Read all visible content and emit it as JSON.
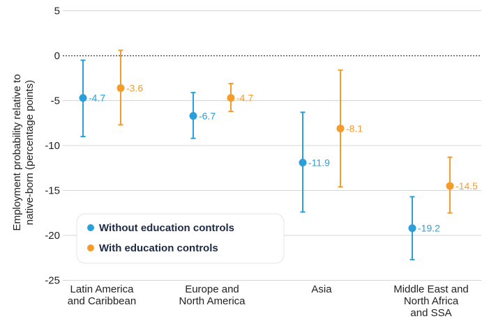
{
  "chart_data": {
    "type": "scatter",
    "ylabel_lines": [
      "Employment probability relative to",
      "native-born (percentage points)"
    ],
    "ylim": [
      -25,
      5
    ],
    "yticks": [
      5,
      0,
      -5,
      -10,
      -15,
      -20,
      -25
    ],
    "zero_line": "dotted",
    "categories": [
      [
        "Latin America",
        "and Caribbean"
      ],
      [
        "Europe and",
        "North America"
      ],
      [
        "Asia"
      ],
      [
        "Middle East and",
        "North Africa",
        "and SSA"
      ]
    ],
    "legend_placement": "bottom-left",
    "series": [
      {
        "name": "Without education controls",
        "color": "#2b9fd9",
        "values": [
          -4.7,
          -6.7,
          -11.9,
          -19.2
        ],
        "ci_low": [
          -9.0,
          -9.2,
          -17.4,
          -22.7
        ],
        "ci_high": [
          -0.5,
          -4.1,
          -6.3,
          -15.7
        ],
        "labels": [
          "-4.7",
          "-6.7",
          "-11.9",
          "-19.2"
        ]
      },
      {
        "name": "With education controls",
        "color": "#f39c2c",
        "values": [
          -3.6,
          -4.7,
          -8.1,
          -14.5
        ],
        "ci_low": [
          -7.7,
          -6.2,
          -14.6,
          -17.5
        ],
        "ci_high": [
          0.6,
          -3.1,
          -1.6,
          -11.3
        ],
        "labels": [
          "-3.6",
          "-4.7",
          "-8.1",
          "-14.5"
        ]
      }
    ]
  }
}
